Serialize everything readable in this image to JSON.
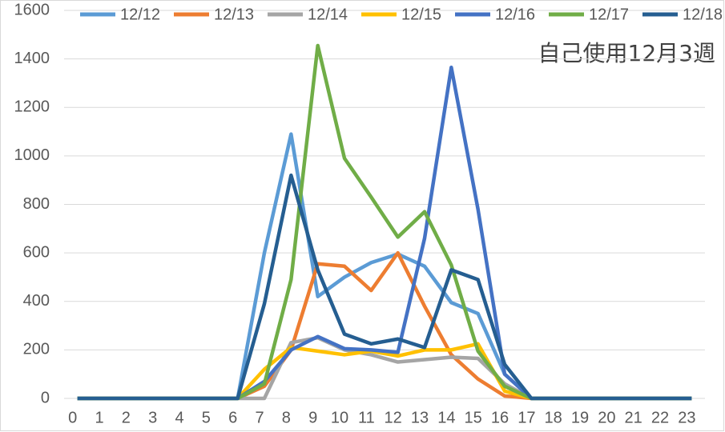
{
  "chart_data": {
    "type": "line",
    "annotation": "自己使用12月3週",
    "categories": [
      "0",
      "1",
      "2",
      "3",
      "4",
      "5",
      "6",
      "7",
      "8",
      "9",
      "10",
      "11",
      "12",
      "13",
      "14",
      "15",
      "16",
      "17",
      "18",
      "19",
      "20",
      "21",
      "22",
      "23"
    ],
    "series": [
      {
        "name": "12/12",
        "color": "#5b9bd5",
        "values": [
          0,
          0,
          0,
          0,
          0,
          0,
          0,
          600,
          1090,
          420,
          500,
          560,
          595,
          545,
          395,
          350,
          100,
          0,
          0,
          0,
          0,
          0,
          0,
          0
        ]
      },
      {
        "name": "12/13",
        "color": "#ed7d31",
        "values": [
          0,
          0,
          0,
          0,
          0,
          0,
          0,
          50,
          200,
          555,
          545,
          445,
          600,
          380,
          180,
          80,
          10,
          0,
          0,
          0,
          0,
          0,
          0,
          0
        ]
      },
      {
        "name": "12/14",
        "color": "#a5a5a5",
        "values": [
          0,
          0,
          0,
          0,
          0,
          0,
          0,
          0,
          230,
          250,
          200,
          180,
          150,
          160,
          170,
          165,
          60,
          0,
          0,
          0,
          0,
          0,
          0,
          0
        ]
      },
      {
        "name": "12/15",
        "color": "#ffc000",
        "values": [
          0,
          0,
          0,
          0,
          0,
          0,
          0,
          120,
          210,
          195,
          180,
          195,
          175,
          200,
          200,
          225,
          30,
          0,
          0,
          0,
          0,
          0,
          0,
          0
        ]
      },
      {
        "name": "12/16",
        "color": "#4472c4",
        "values": [
          0,
          0,
          0,
          0,
          0,
          0,
          0,
          70,
          200,
          255,
          205,
          200,
          190,
          660,
          1365,
          780,
          100,
          0,
          0,
          0,
          0,
          0,
          0,
          0
        ]
      },
      {
        "name": "12/17",
        "color": "#70ad47",
        "values": [
          0,
          0,
          0,
          0,
          0,
          0,
          0,
          60,
          490,
          1455,
          990,
          830,
          665,
          770,
          550,
          195,
          50,
          0,
          0,
          0,
          0,
          0,
          0,
          0
        ]
      },
      {
        "name": "12/18",
        "color": "#255e91",
        "values": [
          0,
          0,
          0,
          0,
          0,
          0,
          0,
          390,
          920,
          530,
          265,
          225,
          245,
          210,
          530,
          490,
          140,
          0,
          0,
          0,
          0,
          0,
          0,
          0
        ]
      }
    ],
    "ylim": [
      0,
      1600
    ],
    "yticks": [
      0,
      200,
      400,
      600,
      800,
      1000,
      1200,
      1400,
      1600
    ],
    "grid": true
  }
}
